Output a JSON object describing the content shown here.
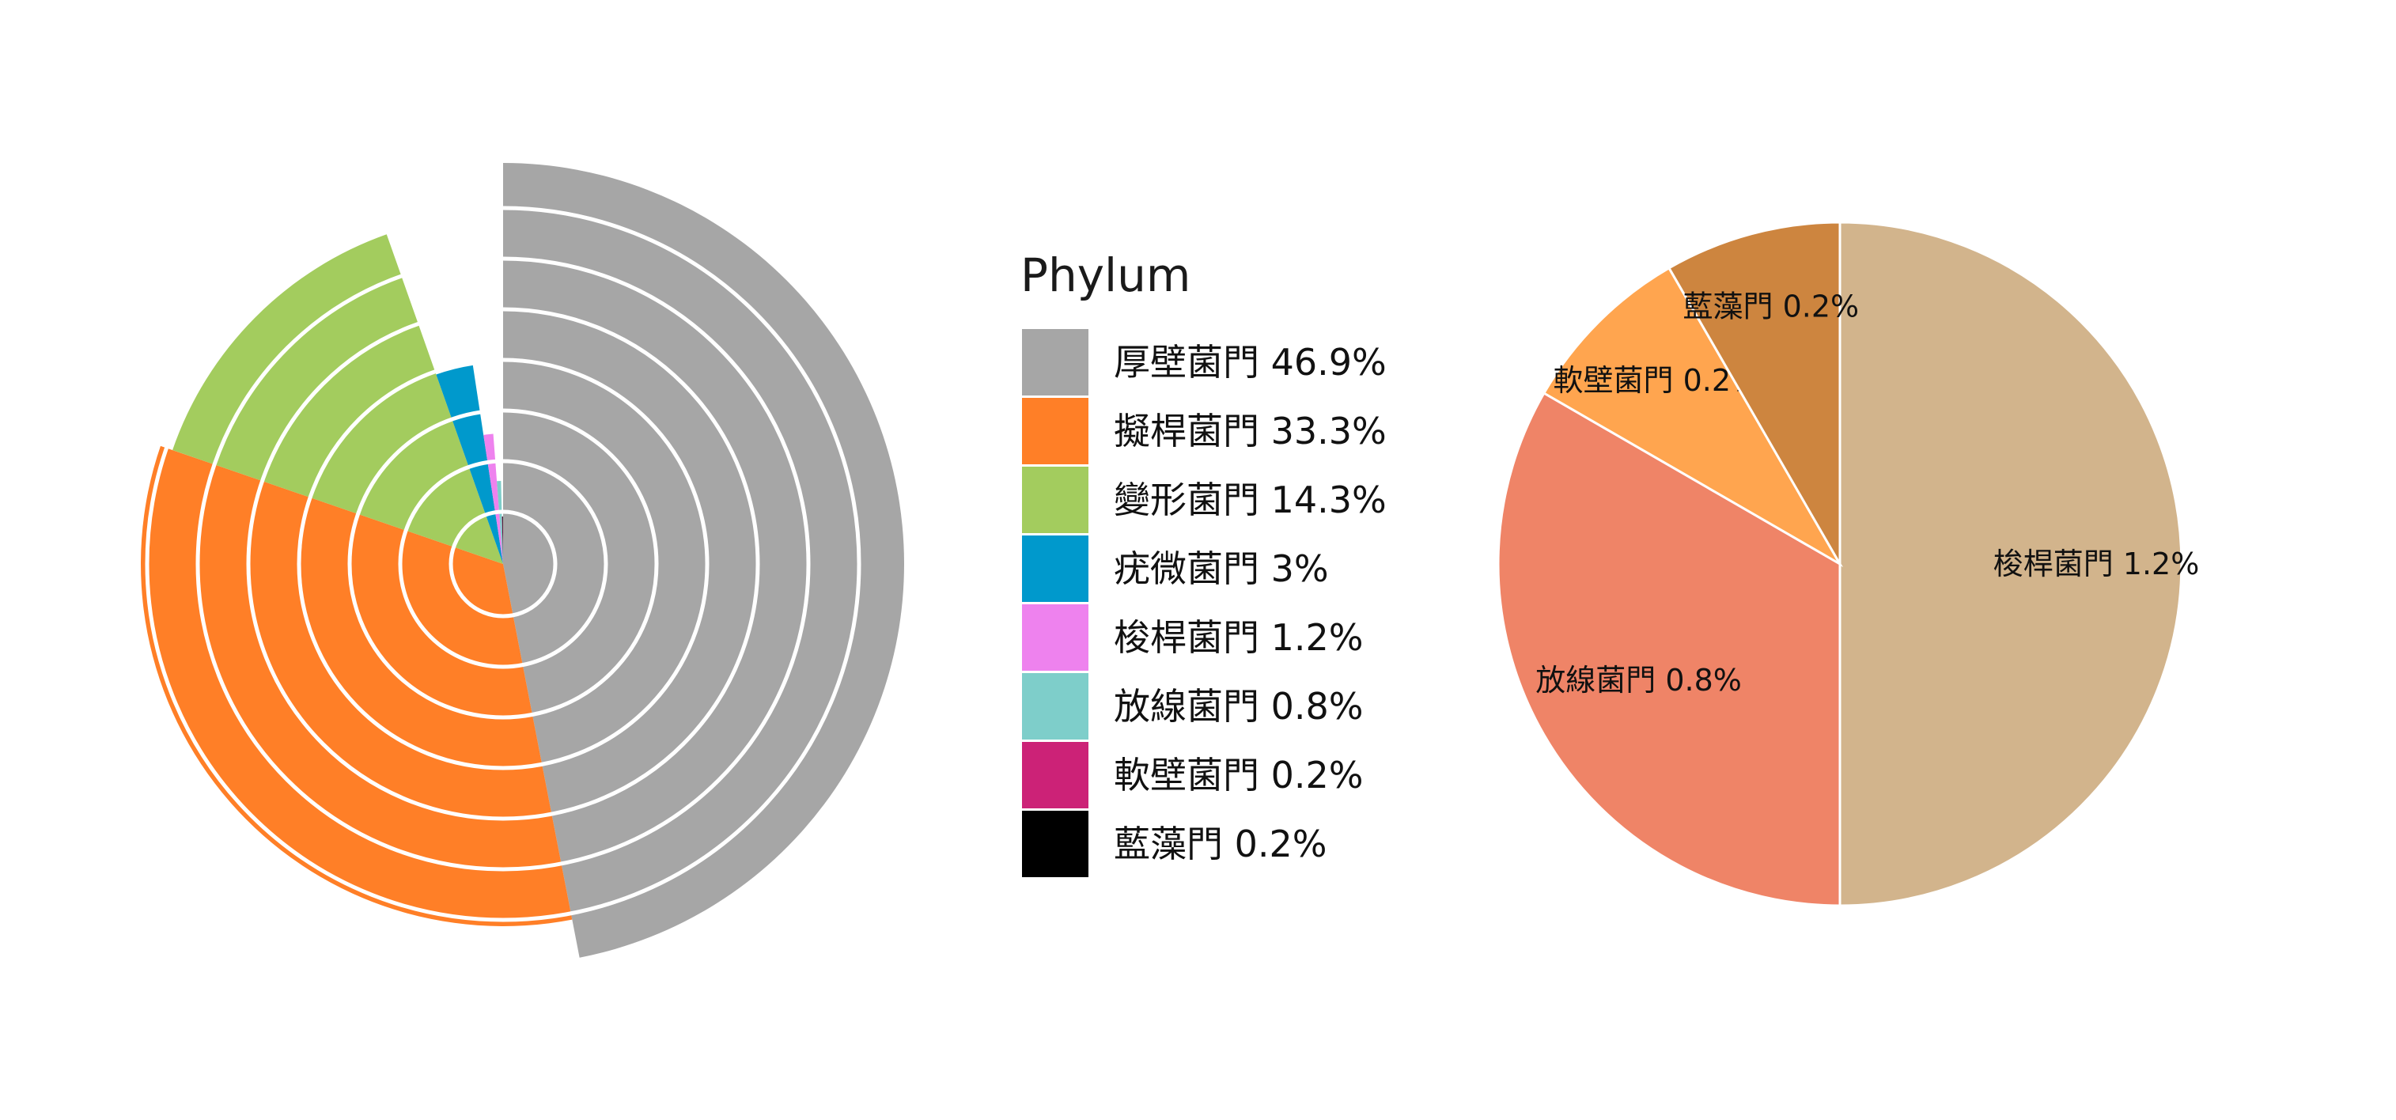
{
  "chart_data": [
    {
      "type": "rose",
      "description_rings": 8,
      "series": [
        {
          "name": "厚壁菌門",
          "value": 46.9,
          "color": "#A6A6A6"
        },
        {
          "name": "擬桿菌門",
          "value": 33.3,
          "color": "#FF7F27"
        },
        {
          "name": "變形菌門",
          "value": 14.3,
          "color": "#A3CC5E"
        },
        {
          "name": "疣微菌門",
          "value": 3,
          "color": "#0099CC"
        },
        {
          "name": "梭桿菌門",
          "value": 1.2,
          "color": "#EE82EE"
        },
        {
          "name": "放線菌門",
          "value": 0.8,
          "color": "#7ECECA"
        },
        {
          "name": "軟壁菌門",
          "value": 0.2,
          "color": "#CC2277"
        },
        {
          "name": "藍藻門",
          "value": 0.2,
          "color": "#000000"
        }
      ],
      "ring_edge_color": "#FFFFFF"
    },
    {
      "type": "legend",
      "title": "Phylum",
      "entries": [
        {
          "label": "厚壁菌門 46.9%",
          "color": "#A6A6A6"
        },
        {
          "label": "擬桿菌門 33.3%",
          "color": "#FF7F27"
        },
        {
          "label": "變形菌門 14.3%",
          "color": "#A3CC5E"
        },
        {
          "label": "疣微菌門 3%",
          "color": "#0099CC"
        },
        {
          "label": "梭桿菌門 1.2%",
          "color": "#EE82EE"
        },
        {
          "label": "放線菌門 0.8%",
          "color": "#7ECECA"
        },
        {
          "label": "軟壁菌門 0.2%",
          "color": "#CC2277"
        },
        {
          "label": "藍藻門 0.2%",
          "color": "#000000"
        }
      ]
    },
    {
      "type": "pie",
      "slices": [
        {
          "name": "梭桿菌門",
          "value": 1.2,
          "label": "梭桿菌門 1.2%",
          "color": "#D2B48C"
        },
        {
          "name": "放線菌門",
          "value": 0.8,
          "label": "放線菌門 0.8%",
          "color": "#EF8467"
        },
        {
          "name": "軟壁菌門",
          "value": 0.2,
          "label": "軟壁菌門 0.2%",
          "color": "#FFA54F"
        },
        {
          "name": "藍藻門",
          "value": 0.2,
          "label": "藍藻門 0.2%",
          "color": "#CD853F"
        }
      ],
      "start": "top",
      "direction": "clockwise",
      "edge_color": "#FFFFFF"
    }
  ]
}
